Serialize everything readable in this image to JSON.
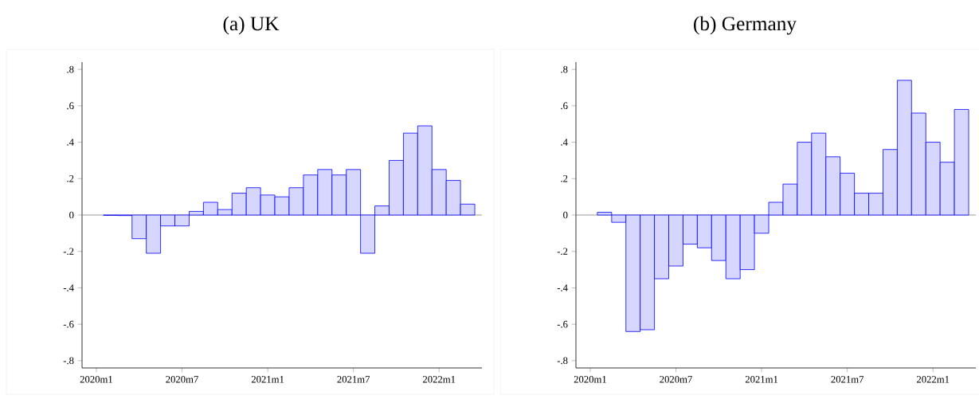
{
  "chart_data": [
    {
      "type": "bar",
      "title": "(a) UK",
      "x": [
        "2020-02",
        "2020-03",
        "2020-04",
        "2020-05",
        "2020-06",
        "2020-07",
        "2020-08",
        "2020-09",
        "2020-10",
        "2020-11",
        "2020-12",
        "2021-01",
        "2021-02",
        "2021-03",
        "2021-04",
        "2021-05",
        "2021-06",
        "2021-07",
        "2021-08",
        "2021-09",
        "2021-10",
        "2021-11",
        "2021-12",
        "2022-01",
        "2022-02",
        "2022-03"
      ],
      "values": [
        -0.002,
        -0.003,
        -0.13,
        -0.21,
        -0.06,
        -0.06,
        0.02,
        0.07,
        0.03,
        0.12,
        0.15,
        0.11,
        0.1,
        0.15,
        0.22,
        0.25,
        0.22,
        0.25,
        -0.21,
        0.05,
        0.3,
        0.45,
        0.49,
        0.25,
        0.19,
        0.06
      ],
      "color": "#d6d6ff",
      "xlim": [
        "2019-12",
        "2022-04"
      ],
      "ylim": [
        -0.84,
        0.84
      ],
      "xticks": [
        {
          "value": "2020-01",
          "label": "2020m1"
        },
        {
          "value": "2020-07",
          "label": "2020m7"
        },
        {
          "value": "2021-01",
          "label": "2021m1"
        },
        {
          "value": "2021-07",
          "label": "2021m7"
        },
        {
          "value": "2022-01",
          "label": "2022m1"
        }
      ],
      "yticks": [
        {
          "value": -0.8,
          "label": "-.8"
        },
        {
          "value": -0.6,
          "label": "-.6"
        },
        {
          "value": -0.4,
          "label": "-.4"
        },
        {
          "value": -0.2,
          "label": "-.2"
        },
        {
          "value": 0,
          "label": "0"
        },
        {
          "value": 0.2,
          "label": ".2"
        },
        {
          "value": 0.4,
          "label": ".4"
        },
        {
          "value": 0.6,
          "label": ".6"
        },
        {
          "value": 0.8,
          "label": ".8"
        }
      ],
      "ref_lines": [
        {
          "axis": "y",
          "value": 0,
          "color": "#808080"
        }
      ]
    },
    {
      "type": "bar",
      "title": "(b) Germany",
      "x": [
        "2020-02",
        "2020-03",
        "2020-04",
        "2020-05",
        "2020-06",
        "2020-07",
        "2020-08",
        "2020-09",
        "2020-10",
        "2020-11",
        "2020-12",
        "2021-01",
        "2021-02",
        "2021-03",
        "2021-04",
        "2021-05",
        "2021-06",
        "2021-07",
        "2021-08",
        "2021-09",
        "2021-10",
        "2021-11",
        "2021-12",
        "2022-01",
        "2022-02",
        "2022-03"
      ],
      "values": [
        0.015,
        -0.04,
        -0.64,
        -0.63,
        -0.35,
        -0.28,
        -0.16,
        -0.18,
        -0.25,
        -0.35,
        -0.3,
        -0.1,
        0.07,
        0.17,
        0.4,
        0.45,
        0.32,
        0.23,
        0.12,
        0.12,
        0.36,
        0.74,
        0.56,
        0.4,
        0.29,
        0.58
      ],
      "color": "#d6d6ff",
      "xlim": [
        "2019-12",
        "2022-04"
      ],
      "ylim": [
        -0.84,
        0.84
      ],
      "xticks": [
        {
          "value": "2020-01",
          "label": "2020m1"
        },
        {
          "value": "2020-07",
          "label": "2020m7"
        },
        {
          "value": "2021-01",
          "label": "2021m1"
        },
        {
          "value": "2021-07",
          "label": "2021m7"
        },
        {
          "value": "2022-01",
          "label": "2022m1"
        }
      ],
      "yticks": [
        {
          "value": -0.8,
          "label": "-.8"
        },
        {
          "value": -0.6,
          "label": "-.6"
        },
        {
          "value": -0.4,
          "label": "-.4"
        },
        {
          "value": -0.2,
          "label": "-.2"
        },
        {
          "value": 0,
          "label": "0"
        },
        {
          "value": 0.2,
          "label": ".2"
        },
        {
          "value": 0.4,
          "label": ".4"
        },
        {
          "value": 0.6,
          "label": ".6"
        },
        {
          "value": 0.8,
          "label": ".8"
        }
      ],
      "ref_lines": [
        {
          "axis": "y",
          "value": 0,
          "color": "#808080"
        }
      ]
    }
  ]
}
